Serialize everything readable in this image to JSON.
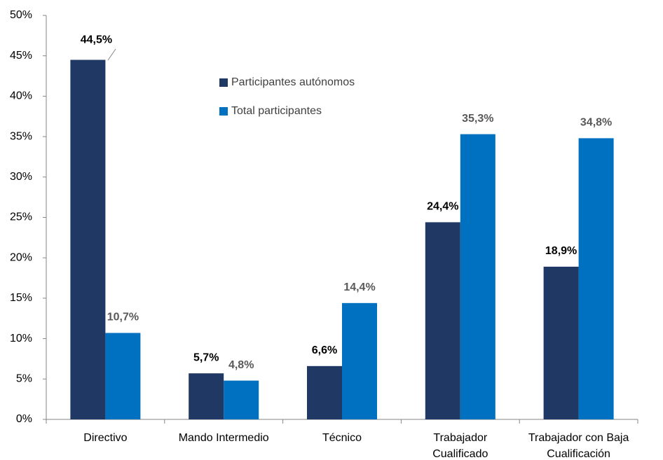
{
  "chart_data": {
    "type": "bar",
    "categories": [
      [
        "Directivo"
      ],
      [
        "Mando Intermedio"
      ],
      [
        "Técnico"
      ],
      [
        "Trabajador",
        "Cualificado"
      ],
      [
        "Trabajador con Baja",
        "Cualificación"
      ]
    ],
    "series": [
      {
        "name": "Participantes autónomos",
        "color": "#203864",
        "label_color": "#000000",
        "values": [
          44.5,
          5.7,
          6.6,
          24.4,
          18.9
        ],
        "value_labels": [
          "44,5%",
          "5,7%",
          "6,6%",
          "24,4%",
          "18,9%"
        ]
      },
      {
        "name": "Total participantes",
        "color": "#0070c0",
        "label_color": "#595959",
        "values": [
          10.7,
          4.8,
          14.4,
          35.3,
          34.8
        ],
        "value_labels": [
          "10,7%",
          "4,8%",
          "14,4%",
          "35,3%",
          "34,8%"
        ]
      }
    ],
    "ylim": [
      0,
      50
    ],
    "yticks": [
      {
        "value": 0,
        "label": "0%"
      },
      {
        "value": 5,
        "label": "5%"
      },
      {
        "value": 10,
        "label": "10%"
      },
      {
        "value": 15,
        "label": "15%"
      },
      {
        "value": 20,
        "label": "20%"
      },
      {
        "value": 25,
        "label": "25%"
      },
      {
        "value": 30,
        "label": "30%"
      },
      {
        "value": 35,
        "label": "35%"
      },
      {
        "value": 40,
        "label": "40%"
      },
      {
        "value": 45,
        "label": "45%"
      },
      {
        "value": 50,
        "label": "50%"
      }
    ],
    "grid": false
  }
}
